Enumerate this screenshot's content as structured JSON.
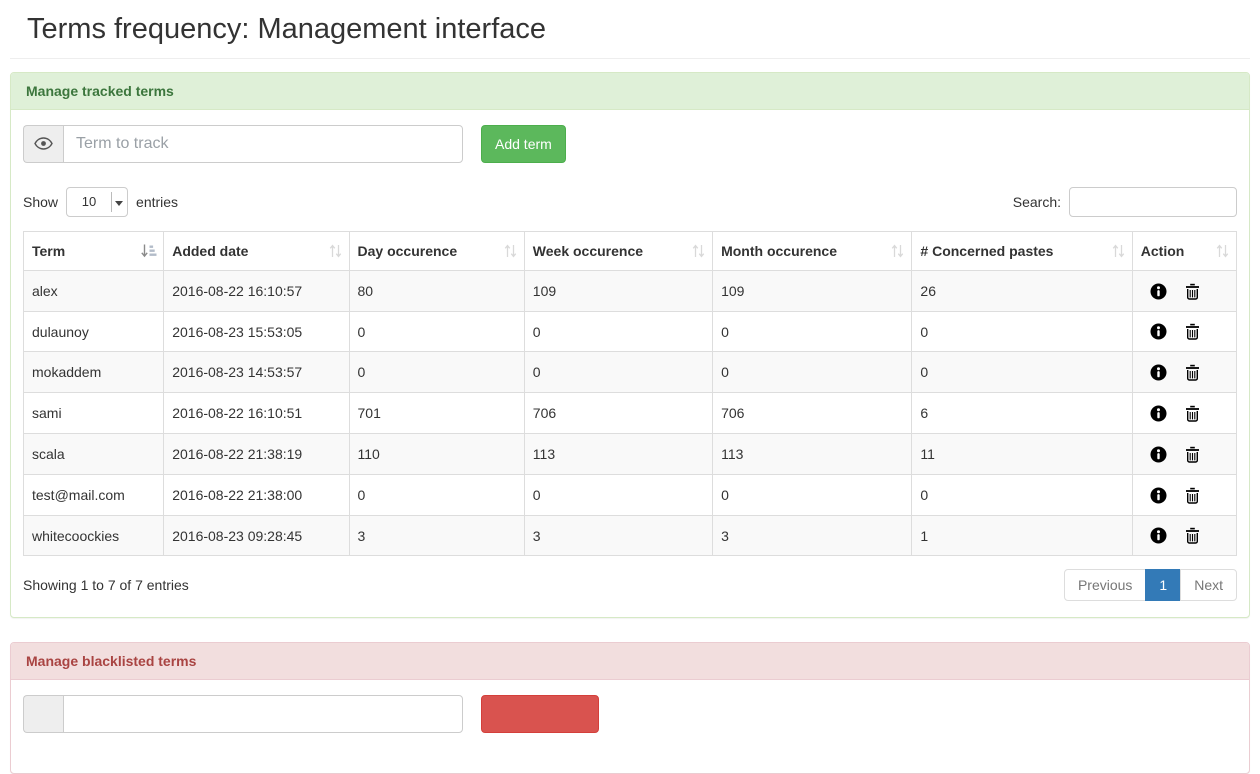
{
  "page": {
    "title": "Terms frequency: Management interface"
  },
  "tracked_panel": {
    "title": "Manage tracked terms",
    "term_input_placeholder": "Term to track",
    "add_button_label": "Add term",
    "addon_icon": "eye-icon"
  },
  "datatable": {
    "show_label": "Show",
    "entries_label": "entries",
    "page_length": "10",
    "search_label": "Search:",
    "search_value": "",
    "columns": [
      "Term",
      "Added date",
      "Day occurence",
      "Week occurence",
      "Month occurence",
      "# Concerned pastes",
      "Action"
    ],
    "sort_state": {
      "sorted_column": "Term",
      "direction": "asc"
    },
    "rows": [
      {
        "term": "alex",
        "added": "2016-08-22 16:10:57",
        "day": "80",
        "week": "109",
        "month": "109",
        "pastes": "26"
      },
      {
        "term": "dulaunoy",
        "added": "2016-08-23 15:53:05",
        "day": "0",
        "week": "0",
        "month": "0",
        "pastes": "0"
      },
      {
        "term": "mokaddem",
        "added": "2016-08-23 14:53:57",
        "day": "0",
        "week": "0",
        "month": "0",
        "pastes": "0"
      },
      {
        "term": "sami",
        "added": "2016-08-22 16:10:51",
        "day": "701",
        "week": "706",
        "month": "706",
        "pastes": "6"
      },
      {
        "term": "scala",
        "added": "2016-08-22 21:38:19",
        "day": "110",
        "week": "113",
        "month": "113",
        "pastes": "11"
      },
      {
        "term": "test@mail.com",
        "added": "2016-08-22 21:38:00",
        "day": "0",
        "week": "0",
        "month": "0",
        "pastes": "0"
      },
      {
        "term": "whitecoockies",
        "added": "2016-08-23 09:28:45",
        "day": "3",
        "week": "3",
        "month": "3",
        "pastes": "1"
      }
    ],
    "action_icons": [
      "info-circle-icon",
      "trash-icon"
    ],
    "info_text": "Showing 1 to 7 of 7 entries",
    "pagination": {
      "previous_label": "Previous",
      "page": "1",
      "next_label": "Next"
    }
  },
  "blacklist_panel": {
    "title": "Manage blacklisted terms",
    "term_input_value": "",
    "add_button_label": ""
  },
  "colors": {
    "success_heading_bg": "#dff0d8",
    "success_heading_text": "#3c763d",
    "success_border": "#d6e9c6",
    "success_button": "#5cb85c",
    "danger_heading_bg": "#f2dede",
    "danger_heading_text": "#a94442",
    "danger_border": "#ebccd1",
    "danger_button": "#d9534f",
    "active_page": "#337ab7",
    "table_border": "#dddddd",
    "stripe": "#f9f9f9"
  }
}
